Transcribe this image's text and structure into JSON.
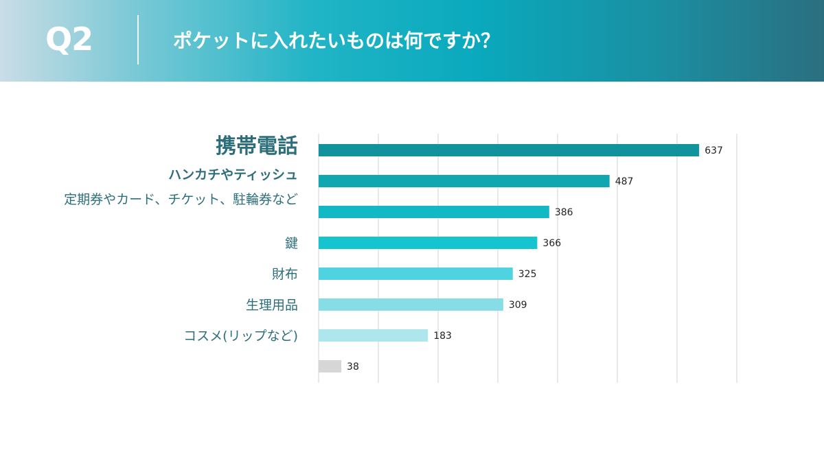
{
  "header": {
    "question_no": "Q2",
    "title": "ポケットに入れたいものは何ですか？"
  },
  "chart_data": {
    "type": "bar",
    "orientation": "horizontal",
    "categories": [
      "携帯電話",
      "ハンカチやティッシュ",
      "定期券やカード、チケット、駐輪券など",
      "鍵",
      "財布",
      "生理用品",
      "コスメ(リップなど)",
      ""
    ],
    "values": [
      637,
      487,
      386,
      366,
      325,
      309,
      183,
      38
    ],
    "bar_colors": [
      "#10939a",
      "#10a7b1",
      "#12b8c4",
      "#16c4d0",
      "#4fd3de",
      "#86dde6",
      "#ade6ec",
      "#d6d6d6"
    ],
    "label_emphasis": [
      "large-bold",
      "bold",
      "normal",
      "normal",
      "normal",
      "normal",
      "normal",
      "normal"
    ],
    "xlim": [
      0,
      700
    ],
    "grid": true,
    "title": "",
    "xlabel": "",
    "ylabel": ""
  }
}
